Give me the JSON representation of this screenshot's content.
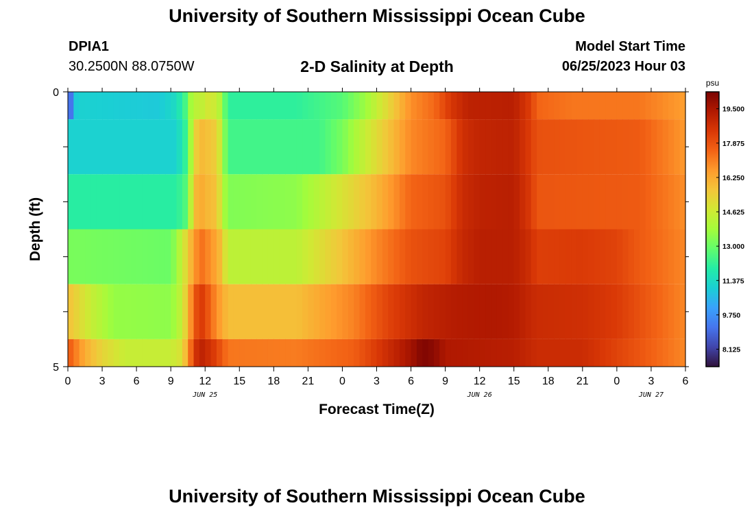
{
  "header": {
    "title": "University of Southern Mississippi Ocean Cube",
    "station": "DPIA1",
    "coordinates": "30.2500N  88.0750W",
    "subtitle": "2-D Salinity at Depth",
    "model_start_label": "Model Start Time",
    "model_start_value": "06/25/2023 Hour 03"
  },
  "footer": {
    "title": "University of Southern Mississippi Ocean Cube"
  },
  "chart_data": {
    "type": "heatmap",
    "title": "2-D Salinity at Depth",
    "xlabel": "Forecast Time(Z)",
    "ylabel": "Depth (ft)",
    "x_range_hours": [
      0,
      54
    ],
    "y_range": [
      0,
      5
    ],
    "x_tick_labels": [
      "0",
      "3",
      "6",
      "9",
      "12",
      "15",
      "18",
      "21",
      "0",
      "3",
      "6",
      "9",
      "12",
      "15",
      "18",
      "21",
      "0",
      "3",
      "6"
    ],
    "y_tick_labels": [
      "0",
      "5"
    ],
    "date_labels": [
      {
        "label": "JUN 25",
        "hour": 12
      },
      {
        "label": "JUN 26",
        "hour": 36
      },
      {
        "label": "JUN 27",
        "hour": 51
      }
    ],
    "colorbar": {
      "unit": "psu",
      "min": 7.3,
      "max": 20.3,
      "tick_labels": [
        "19.500",
        "17.875",
        "16.250",
        "14.625",
        "13.000",
        "11.375",
        "9.750",
        "8.125"
      ],
      "tick_values": [
        19.5,
        17.875,
        16.25,
        14.625,
        13.0,
        11.375,
        9.75,
        8.125
      ],
      "colors": [
        "#30123b",
        "#4145ab",
        "#4675ed",
        "#39a2fc",
        "#1bcfd4",
        "#24eca6",
        "#61fc6c",
        "#a4fc3b",
        "#d1e834",
        "#f3c63a",
        "#fe9b2d",
        "#f36315",
        "#d93806",
        "#b11901",
        "#7a0402"
      ]
    },
    "depth_bands": [
      {
        "depth_range": [
          0,
          0.5
        ],
        "keys": [
          [
            0,
            7.5
          ],
          [
            0.5,
            10.8
          ],
          [
            1,
            11.1
          ],
          [
            4,
            11.0
          ],
          [
            8,
            10.9
          ],
          [
            9.5,
            11.4
          ],
          [
            10.5,
            12.8
          ],
          [
            11,
            14.8
          ],
          [
            11.5,
            13.8
          ],
          [
            12,
            15.0
          ],
          [
            12.5,
            14.5
          ],
          [
            13,
            14.8
          ],
          [
            13.5,
            13.5
          ],
          [
            14,
            12.1
          ],
          [
            20,
            12.1
          ],
          [
            24,
            12.7
          ],
          [
            26,
            13.7
          ],
          [
            28,
            15.2
          ],
          [
            30,
            16.8
          ],
          [
            32,
            17.4
          ],
          [
            33.5,
            18.5
          ],
          [
            35,
            19.1
          ],
          [
            39,
            19.2
          ],
          [
            40.5,
            18.3
          ],
          [
            41,
            17.5
          ],
          [
            44,
            17.2
          ],
          [
            50,
            17.2
          ],
          [
            54,
            16.5
          ]
        ]
      },
      {
        "depth_range": [
          0.5,
          1.5
        ],
        "keys": [
          [
            0,
            11.1
          ],
          [
            9.5,
            11.1
          ],
          [
            10.5,
            12.5
          ],
          [
            11,
            15.2
          ],
          [
            11.5,
            15.8
          ],
          [
            12,
            16.0
          ],
          [
            12.5,
            15.5
          ],
          [
            13,
            15.6
          ],
          [
            13.5,
            14.0
          ],
          [
            14,
            12.4
          ],
          [
            22,
            12.4
          ],
          [
            24,
            13.2
          ],
          [
            26,
            14.5
          ],
          [
            28,
            15.7
          ],
          [
            30,
            16.9
          ],
          [
            33,
            17.5
          ],
          [
            34.5,
            18.7
          ],
          [
            36,
            19.0
          ],
          [
            39,
            19.1
          ],
          [
            40.5,
            18.3
          ],
          [
            41,
            17.9
          ],
          [
            50,
            17.7
          ],
          [
            54,
            16.6
          ]
        ]
      },
      {
        "depth_range": [
          1.5,
          2.5
        ],
        "keys": [
          [
            0,
            12.0
          ],
          [
            9.5,
            12.0
          ],
          [
            10.5,
            12.8
          ],
          [
            11,
            15.8
          ],
          [
            11.5,
            16.2
          ],
          [
            12,
            16.2
          ],
          [
            12.5,
            15.7
          ],
          [
            13,
            15.9
          ],
          [
            13.5,
            14.2
          ],
          [
            14,
            13.3
          ],
          [
            20,
            13.5
          ],
          [
            24,
            14.9
          ],
          [
            27,
            16.0
          ],
          [
            30,
            17.5
          ],
          [
            33,
            17.9
          ],
          [
            34.5,
            18.8
          ],
          [
            36,
            19.1
          ],
          [
            39,
            19.2
          ],
          [
            40.5,
            18.4
          ],
          [
            41,
            17.8
          ],
          [
            50,
            17.7
          ],
          [
            54,
            16.8
          ]
        ]
      },
      {
        "depth_range": [
          2.5,
          3.5
        ],
        "keys": [
          [
            0,
            13.2
          ],
          [
            9,
            13.0
          ],
          [
            10,
            14.5
          ],
          [
            11,
            16.5
          ],
          [
            11.5,
            17.2
          ],
          [
            12,
            17.3
          ],
          [
            12.5,
            16.5
          ],
          [
            13,
            16.5
          ],
          [
            13.5,
            15.5
          ],
          [
            14,
            14.3
          ],
          [
            20,
            14.3
          ],
          [
            24,
            15.7
          ],
          [
            27,
            16.9
          ],
          [
            30,
            17.9
          ],
          [
            33,
            18.2
          ],
          [
            34.5,
            18.9
          ],
          [
            36,
            19.2
          ],
          [
            39,
            19.2
          ],
          [
            40.5,
            18.7
          ],
          [
            41,
            18.3
          ],
          [
            45,
            18.4
          ],
          [
            48,
            18.2
          ],
          [
            50,
            17.7
          ],
          [
            54,
            16.9
          ]
        ]
      },
      {
        "depth_range": [
          3.5,
          4.5
        ],
        "keys": [
          [
            0,
            15.8
          ],
          [
            2,
            14.5
          ],
          [
            4,
            13.6
          ],
          [
            9,
            13.5
          ],
          [
            10,
            14.5
          ],
          [
            11,
            17.5
          ],
          [
            11.5,
            18.5
          ],
          [
            12,
            18.2
          ],
          [
            12.5,
            17.4
          ],
          [
            13,
            16.8
          ],
          [
            14,
            15.8
          ],
          [
            20,
            15.8
          ],
          [
            25,
            17.0
          ],
          [
            28,
            18.2
          ],
          [
            31,
            19.0
          ],
          [
            34,
            19.3
          ],
          [
            37,
            19.4
          ],
          [
            39,
            19.3
          ],
          [
            41,
            18.8
          ],
          [
            45,
            18.7
          ],
          [
            48,
            18.4
          ],
          [
            50,
            17.9
          ],
          [
            54,
            16.9
          ]
        ]
      },
      {
        "depth_range": [
          4.5,
          5
        ],
        "keys": [
          [
            0,
            17.8
          ],
          [
            1.5,
            16.2
          ],
          [
            3,
            15.3
          ],
          [
            5,
            14.5
          ],
          [
            9,
            14.5
          ],
          [
            10,
            15.0
          ],
          [
            11,
            18.2
          ],
          [
            11.5,
            19.2
          ],
          [
            12.5,
            18.6
          ],
          [
            13,
            18.2
          ],
          [
            14,
            17.2
          ],
          [
            20,
            17.1
          ],
          [
            25,
            17.6
          ],
          [
            28,
            18.8
          ],
          [
            30,
            19.6
          ],
          [
            31,
            20.2
          ],
          [
            32,
            20.0
          ],
          [
            33,
            19.4
          ],
          [
            39,
            19.2
          ],
          [
            41,
            18.8
          ],
          [
            45,
            18.8
          ],
          [
            48,
            18.2
          ],
          [
            50,
            17.8
          ],
          [
            54,
            16.9
          ]
        ]
      }
    ]
  }
}
